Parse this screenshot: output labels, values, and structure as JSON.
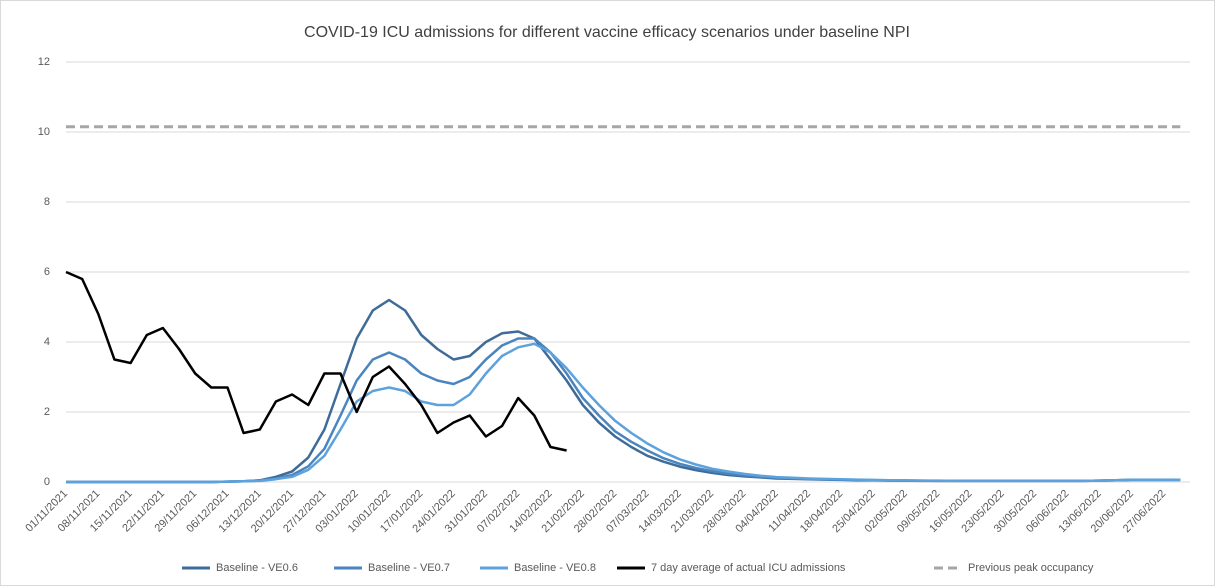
{
  "chart_data": {
    "type": "line",
    "title": "COVID-19 ICU admissions  for different vaccine efficacy scenarios under baseline NPI",
    "categories": [
      "01/11/2021",
      null,
      "08/11/2021",
      null,
      "15/11/2021",
      null,
      "22/11/2021",
      null,
      "29/11/2021",
      null,
      "06/12/2021",
      null,
      "13/12/2021",
      null,
      "20/12/2021",
      null,
      "27/12/2021",
      null,
      "03/01/2022",
      null,
      "10/01/2022",
      null,
      "17/01/2022",
      null,
      "24/01/2022",
      null,
      "31/01/2022",
      null,
      "07/02/2022",
      null,
      "14/02/2022",
      null,
      "21/02/2022",
      null,
      "28/02/2022",
      null,
      "07/03/2022",
      null,
      "14/03/2022",
      null,
      "21/03/2022",
      null,
      "28/03/2022",
      null,
      "04/04/2022",
      null,
      "11/04/2022",
      null,
      "18/04/2022",
      null,
      "25/04/2022",
      null,
      "02/05/2022",
      null,
      "09/05/2022",
      null,
      "16/05/2022",
      null,
      "23/05/2022",
      null,
      "30/05/2022",
      null,
      "06/06/2022",
      null,
      "13/06/2022",
      null,
      "20/06/2022",
      null,
      "27/06/2022",
      null
    ],
    "series": [
      {
        "name": "Baseline - VE0.6",
        "color": "#3e6b97",
        "values": [
          0,
          0,
          0,
          0,
          0,
          0,
          0,
          0,
          0,
          0,
          0.01,
          0.02,
          0.05,
          0.15,
          0.3,
          0.7,
          1.5,
          2.8,
          4.1,
          4.9,
          5.2,
          4.9,
          4.2,
          3.8,
          3.5,
          3.6,
          4.0,
          4.25,
          4.3,
          4.1,
          3.5,
          2.9,
          2.2,
          1.7,
          1.3,
          1.0,
          0.75,
          0.58,
          0.44,
          0.34,
          0.26,
          0.2,
          0.16,
          0.13,
          0.1,
          0.09,
          0.08,
          0.07,
          0.06,
          0.05,
          0.05,
          0.04,
          0.04,
          0.03,
          0.03,
          0.03,
          0.03,
          0.03,
          0.03,
          0.03,
          0.03,
          0.03,
          0.03,
          0.03,
          0.04,
          0.05,
          0.06,
          0.06,
          0.06,
          0.06
        ]
      },
      {
        "name": "Baseline - VE0.7",
        "color": "#4a85bf",
        "values": [
          0,
          0,
          0,
          0,
          0,
          0,
          0,
          0,
          0,
          0,
          0.01,
          0.02,
          0.04,
          0.1,
          0.2,
          0.45,
          0.95,
          1.9,
          2.9,
          3.5,
          3.7,
          3.5,
          3.1,
          2.9,
          2.8,
          3.0,
          3.5,
          3.9,
          4.1,
          4.1,
          3.7,
          3.1,
          2.4,
          1.9,
          1.45,
          1.15,
          0.9,
          0.68,
          0.52,
          0.4,
          0.31,
          0.24,
          0.19,
          0.15,
          0.12,
          0.1,
          0.09,
          0.08,
          0.07,
          0.06,
          0.05,
          0.05,
          0.04,
          0.04,
          0.03,
          0.03,
          0.03,
          0.03,
          0.03,
          0.03,
          0.03,
          0.03,
          0.03,
          0.03,
          0.04,
          0.05,
          0.06,
          0.06,
          0.06,
          0.06
        ]
      },
      {
        "name": "Baseline - VE0.8",
        "color": "#5da2dc",
        "values": [
          0,
          0,
          0,
          0,
          0,
          0,
          0,
          0,
          0,
          0,
          0.01,
          0.02,
          0.03,
          0.08,
          0.15,
          0.35,
          0.75,
          1.5,
          2.3,
          2.6,
          2.7,
          2.6,
          2.3,
          2.2,
          2.2,
          2.5,
          3.1,
          3.6,
          3.85,
          3.95,
          3.7,
          3.25,
          2.7,
          2.2,
          1.75,
          1.4,
          1.1,
          0.85,
          0.65,
          0.5,
          0.38,
          0.3,
          0.23,
          0.18,
          0.14,
          0.12,
          0.1,
          0.09,
          0.08,
          0.07,
          0.06,
          0.05,
          0.05,
          0.04,
          0.04,
          0.03,
          0.03,
          0.03,
          0.03,
          0.03,
          0.03,
          0.03,
          0.03,
          0.03,
          0.04,
          0.05,
          0.06,
          0.06,
          0.06,
          0.06
        ]
      },
      {
        "name": "7 day average of actual ICU admissions",
        "color": "#000000",
        "values": [
          6.0,
          5.8,
          4.8,
          3.5,
          3.4,
          4.2,
          4.4,
          3.8,
          3.1,
          2.7,
          2.7,
          1.4,
          1.5,
          2.3,
          2.5,
          2.2,
          3.1,
          3.1,
          2.0,
          3.0,
          3.3,
          2.8,
          2.2,
          1.4,
          1.7,
          1.9,
          1.3,
          1.6,
          2.4,
          1.9,
          1.0,
          0.9,
          null,
          null,
          null,
          null,
          null,
          null,
          null,
          null,
          null,
          null,
          null,
          null,
          null,
          null,
          null,
          null,
          null,
          null,
          null,
          null,
          null,
          null,
          null,
          null,
          null,
          null,
          null,
          null,
          null,
          null,
          null,
          null,
          null,
          null,
          null,
          null,
          null,
          null
        ]
      },
      {
        "name": "Previous peak occupancy",
        "color": "#a6a6a6",
        "dashed": true,
        "values": [
          10.15,
          10.15,
          10.15,
          10.15,
          10.15,
          10.15,
          10.15,
          10.15,
          10.15,
          10.15,
          10.15,
          10.15,
          10.15,
          10.15,
          10.15,
          10.15,
          10.15,
          10.15,
          10.15,
          10.15,
          10.15,
          10.15,
          10.15,
          10.15,
          10.15,
          10.15,
          10.15,
          10.15,
          10.15,
          10.15,
          10.15,
          10.15,
          10.15,
          10.15,
          10.15,
          10.15,
          10.15,
          10.15,
          10.15,
          10.15,
          10.15,
          10.15,
          10.15,
          10.15,
          10.15,
          10.15,
          10.15,
          10.15,
          10.15,
          10.15,
          10.15,
          10.15,
          10.15,
          10.15,
          10.15,
          10.15,
          10.15,
          10.15,
          10.15,
          10.15,
          10.15,
          10.15,
          10.15,
          10.15,
          10.15,
          10.15,
          10.15,
          10.15,
          10.15,
          10.15
        ]
      }
    ],
    "ylim": [
      0,
      12
    ],
    "yticks": [
      0,
      2,
      4,
      6,
      8,
      10,
      12
    ],
    "grid": true,
    "legend": "bottom"
  }
}
